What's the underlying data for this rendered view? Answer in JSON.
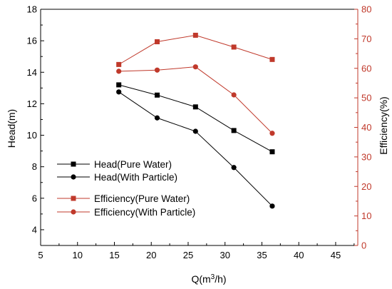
{
  "chart_data": {
    "type": "line",
    "xlabel": "Q(m³/h)",
    "ylabel_left": "Head(m)",
    "ylabel_right": "Efficiency(%)",
    "xlim": [
      5,
      48
    ],
    "ylim_left": [
      3,
      18
    ],
    "ylim_right": [
      0,
      80
    ],
    "x_ticks": [
      5,
      10,
      15,
      20,
      25,
      30,
      35,
      40,
      45
    ],
    "y_left_ticks": [
      4,
      6,
      8,
      10,
      12,
      14,
      16,
      18
    ],
    "y_right_ticks": [
      0,
      10,
      20,
      30,
      40,
      50,
      60,
      70,
      80
    ],
    "grid": false,
    "legend_position": "lower-left",
    "colors": {
      "head": "#000000",
      "efficiency": "#c0392b",
      "right_axis": "#c0392b"
    },
    "series": [
      {
        "name": "Head(Pure Water)",
        "axis": "left",
        "marker": "square",
        "x": [
          15.6,
          20.8,
          26.0,
          31.2,
          36.4
        ],
        "y": [
          13.2,
          12.55,
          11.8,
          10.3,
          8.95
        ]
      },
      {
        "name": "Head(With Particle)",
        "axis": "left",
        "marker": "circle",
        "x": [
          15.6,
          20.8,
          26.0,
          31.2,
          36.4
        ],
        "y": [
          12.75,
          11.1,
          10.25,
          7.95,
          5.5
        ]
      },
      {
        "name": "Efficiency(Pure Water)",
        "axis": "right",
        "marker": "square",
        "x": [
          15.6,
          20.8,
          26.0,
          31.2,
          36.4
        ],
        "y": [
          61.3,
          69.0,
          71.2,
          67.2,
          63.0
        ]
      },
      {
        "name": "Efficiency(With Particle)",
        "axis": "right",
        "marker": "circle",
        "x": [
          15.6,
          20.8,
          26.0,
          31.2,
          36.4
        ],
        "y": [
          59.0,
          59.4,
          60.5,
          51.0,
          38.0
        ]
      }
    ]
  }
}
